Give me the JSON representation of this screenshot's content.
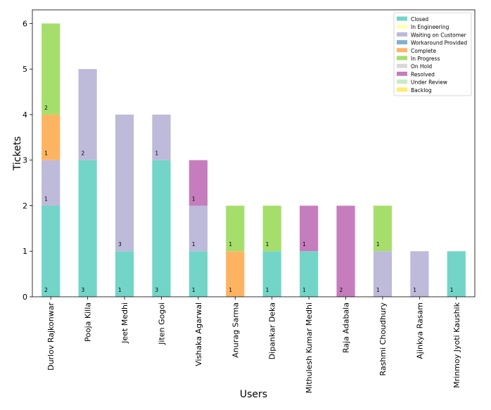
{
  "chart_data": {
    "type": "bar",
    "stacked": true,
    "xlabel": "Users",
    "ylabel": "Tickets",
    "ylim": [
      0,
      6.3
    ],
    "yticks": [
      0,
      1,
      2,
      3,
      4,
      5,
      6
    ],
    "grid": false,
    "legend_position": "top-right",
    "categories": [
      "Durlov Rajkonwar",
      "Pooja Killa",
      "Jeet Medhi",
      "Jiten Gogoi",
      "Vishaka Agarwal",
      "Anurag Sarma",
      "Dipankar Deka",
      "Mithulesh Kumar Medhi",
      "Raja Adabala",
      "Rashmi Choudhury",
      "Ajinkya Rasam",
      "Mrinmoy Jyoti Kaushik"
    ],
    "series": [
      {
        "name": "Closed",
        "color": "#72d5c8",
        "values": [
          2,
          3,
          1,
          3,
          1,
          0,
          1,
          1,
          0,
          0,
          0,
          1
        ]
      },
      {
        "name": "In Engineering",
        "color": "#ffffb3",
        "values": [
          0,
          0,
          0,
          0,
          0,
          0,
          0,
          0,
          0,
          0,
          0,
          0
        ]
      },
      {
        "name": "Waiting on Customer",
        "color": "#bebada",
        "values": [
          1,
          2,
          3,
          1,
          1,
          0,
          0,
          0,
          0,
          1,
          1,
          0
        ]
      },
      {
        "name": "Workaround Provided",
        "color": "#80b1d3",
        "values": [
          0,
          0,
          0,
          0,
          0,
          0,
          0,
          0,
          0,
          0,
          0,
          0
        ]
      },
      {
        "name": "Complete",
        "color": "#fdb462",
        "values": [
          1,
          0,
          0,
          0,
          0,
          1,
          0,
          0,
          0,
          0,
          0,
          0
        ]
      },
      {
        "name": "In Progress",
        "color": "#a6de6c",
        "values": [
          2,
          0,
          0,
          0,
          0,
          1,
          1,
          0,
          0,
          1,
          0,
          0
        ]
      },
      {
        "name": "On Hold",
        "color": "#d9d9d9",
        "values": [
          0,
          0,
          0,
          0,
          0,
          0,
          0,
          0,
          0,
          0,
          0,
          0
        ]
      },
      {
        "name": "Resolved",
        "color": "#c67dbd",
        "values": [
          0,
          0,
          0,
          0,
          1,
          0,
          0,
          1,
          2,
          0,
          0,
          0
        ]
      },
      {
        "name": "Under Review",
        "color": "#ccebc5",
        "values": [
          0,
          0,
          0,
          0,
          0,
          0,
          0,
          0,
          0,
          0,
          0,
          0
        ]
      },
      {
        "name": "Backlog",
        "color": "#ffed6f",
        "values": [
          0,
          0,
          0,
          0,
          0,
          0,
          0,
          0,
          0,
          0,
          0,
          0
        ]
      }
    ],
    "data_labels": [
      {
        "category": "Durlov Rajkonwar",
        "series": "Closed",
        "text": "2"
      },
      {
        "category": "Durlov Rajkonwar",
        "series": "Waiting on Customer",
        "text": "1"
      },
      {
        "category": "Durlov Rajkonwar",
        "series": "Complete",
        "text": "1"
      },
      {
        "category": "Durlov Rajkonwar",
        "series": "In Progress",
        "text": "2"
      },
      {
        "category": "Pooja Killa",
        "series": "Closed",
        "text": "3"
      },
      {
        "category": "Pooja Killa",
        "series": "Waiting on Customer",
        "text": "2"
      },
      {
        "category": "Jeet Medhi",
        "series": "Closed",
        "text": "1"
      },
      {
        "category": "Jeet Medhi",
        "series": "Waiting on Customer",
        "text": "3"
      },
      {
        "category": "Jiten Gogoi",
        "series": "Closed",
        "text": "3"
      },
      {
        "category": "Jiten Gogoi",
        "series": "Waiting on Customer",
        "text": "1"
      },
      {
        "category": "Vishaka Agarwal",
        "series": "Closed",
        "text": "1"
      },
      {
        "category": "Vishaka Agarwal",
        "series": "Waiting on Customer",
        "text": "1"
      },
      {
        "category": "Vishaka Agarwal",
        "series": "Resolved",
        "text": "1"
      },
      {
        "category": "Anurag Sarma",
        "series": "Complete",
        "text": "1"
      },
      {
        "category": "Anurag Sarma",
        "series": "In Progress",
        "text": "1"
      },
      {
        "category": "Dipankar Deka",
        "series": "Closed",
        "text": "1"
      },
      {
        "category": "Dipankar Deka",
        "series": "In Progress",
        "text": "1"
      },
      {
        "category": "Mithulesh Kumar Medhi",
        "series": "Closed",
        "text": "1"
      },
      {
        "category": "Mithulesh Kumar Medhi",
        "series": "Resolved",
        "text": "1"
      },
      {
        "category": "Raja Adabala",
        "series": "Resolved",
        "text": "2"
      },
      {
        "category": "Rashmi Choudhury",
        "series": "Waiting on Customer",
        "text": "1"
      },
      {
        "category": "Rashmi Choudhury",
        "series": "In Progress",
        "text": "1"
      },
      {
        "category": "Ajinkya Rasam",
        "series": "Waiting on Customer",
        "text": "1"
      },
      {
        "category": "Mrinmoy Jyoti Kaushik",
        "series": "Closed",
        "text": "1"
      }
    ]
  }
}
